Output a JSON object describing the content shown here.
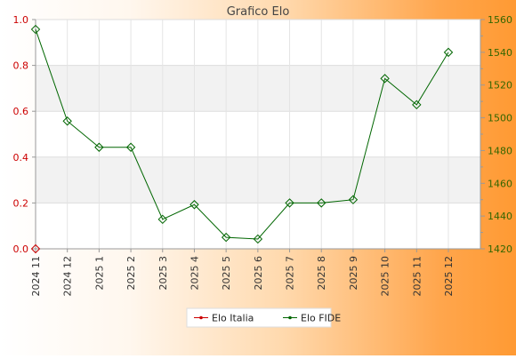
{
  "chart_data": {
    "type": "line",
    "title": "Grafico Elo",
    "categories": [
      "2024 11",
      "2024 12",
      "2025 1",
      "2025 2",
      "2025 3",
      "2025 4",
      "2025 5",
      "2025 6",
      "2025 7",
      "2025 8",
      "2025 9",
      "2025 10",
      "2025 11",
      "2025 12"
    ],
    "series": [
      {
        "name": "Elo Italia",
        "axis": "left",
        "color": "#cc0000",
        "values": [
          0,
          null,
          null,
          null,
          null,
          null,
          null,
          null,
          null,
          null,
          null,
          null,
          null,
          null
        ]
      },
      {
        "name": "Elo FIDE",
        "axis": "right",
        "color": "#006600",
        "values": [
          1554,
          1498,
          1482,
          1482,
          1438,
          1447,
          1427,
          1426,
          1448,
          1448,
          1450,
          1524,
          1508,
          1540
        ]
      }
    ],
    "y_left": {
      "min": 0,
      "max": 1,
      "ticks": [
        "0.0",
        "0.2",
        "0.4",
        "0.6",
        "0.8",
        "1.0"
      ],
      "color": "#cc0000"
    },
    "y_right": {
      "min": 1420,
      "max": 1560,
      "ticks": [
        "1420",
        "1440",
        "1460",
        "1480",
        "1500",
        "1520",
        "1540",
        "1560"
      ],
      "color": "#336600"
    },
    "grid": true,
    "legend_position": "bottom"
  }
}
